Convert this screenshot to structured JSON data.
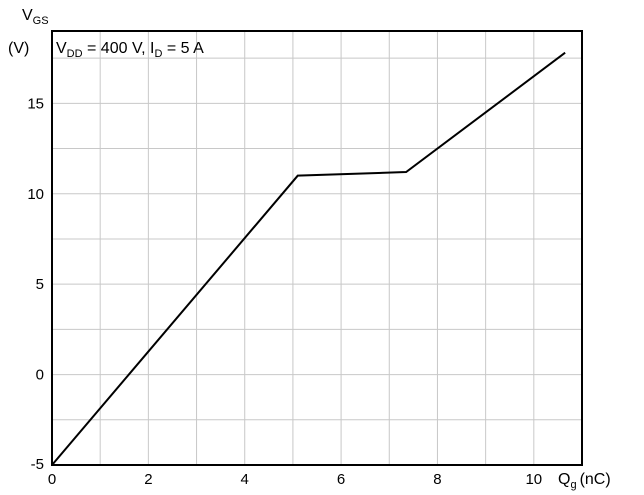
{
  "chart_data": {
    "type": "line",
    "ylabel_symbol": "V",
    "ylabel_subscript": "GS",
    "ylabel_unit": "(V)",
    "xlabel_symbol": "Q",
    "xlabel_subscript": "g",
    "xlabel_unit": "(nC)",
    "annotation": {
      "vdd_symbol": "V",
      "vdd_subscript": "DD",
      "vdd_value": " = 400 V, ",
      "id_symbol": "I",
      "id_subscript": "D",
      "id_value": " = 5 A"
    },
    "xlim": [
      0,
      11
    ],
    "ylim": [
      -5,
      19
    ],
    "x_ticks": [
      0,
      2,
      4,
      6,
      8,
      10
    ],
    "y_ticks": [
      -5,
      0,
      5,
      10,
      15
    ],
    "x_grid_step": 1,
    "y_grid_step": 2.5,
    "grid": true,
    "series": [
      {
        "x": [
          0,
          5.1,
          7.35,
          10.65
        ],
        "y": [
          -5,
          11,
          11.2,
          17.8
        ]
      }
    ]
  }
}
